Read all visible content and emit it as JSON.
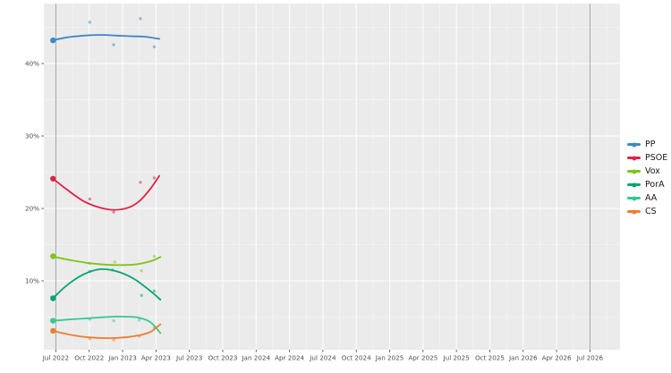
{
  "chart_data": {
    "type": "line",
    "title": "",
    "description": "Opinion poll tracker: smoothed party trend lines with individual poll dots and election-result dots, Jul 2022 - Jul 2026",
    "x_axis": {
      "tick_labels": [
        "Jul 2022",
        "Oct 2022",
        "Jan 2023",
        "Apr 2023",
        "Jul 2023",
        "Oct 2023",
        "Jan 2024",
        "Apr 2024",
        "Jul 2024",
        "Oct 2024",
        "Jan 2025",
        "Apr 2025",
        "Jul 2025",
        "Oct 2025",
        "Jan 2026",
        "Apr 2026",
        "Jul 2026"
      ],
      "tick_months": [
        0,
        3,
        6,
        9,
        12,
        15,
        18,
        21,
        24,
        27,
        30,
        33,
        36,
        39,
        42,
        45,
        48
      ]
    },
    "y_axis": {
      "tick_labels": [
        "40%",
        "30%",
        "20%",
        "10%"
      ],
      "tick_values": [
        40,
        30,
        20,
        10
      ],
      "minor_values": [
        45,
        35,
        25,
        15,
        5
      ],
      "range_pct": [
        0.5,
        48
      ]
    },
    "election_marker_months": [
      0,
      48
    ],
    "series": [
      {
        "name": "PP",
        "color": "#3d87c4",
        "election_result": 43.2,
        "trend": [
          [
            -0.25,
            43.2
          ],
          [
            1,
            43.6
          ],
          [
            2.5,
            43.85
          ],
          [
            4,
            43.95
          ],
          [
            5.5,
            43.85
          ],
          [
            7,
            43.75
          ],
          [
            8,
            43.7
          ],
          [
            9.3,
            43.4
          ]
        ],
        "polls": [
          [
            3.05,
            45.7
          ],
          [
            5.2,
            42.6
          ],
          [
            7.6,
            46.2
          ],
          [
            8.85,
            42.3
          ]
        ]
      },
      {
        "name": "PSOE",
        "color": "#e02246",
        "election_result": 24.1,
        "trend": [
          [
            -0.25,
            24.1
          ],
          [
            1,
            22.6
          ],
          [
            2.5,
            21.0
          ],
          [
            4,
            20.1
          ],
          [
            5.3,
            19.8
          ],
          [
            6.5,
            20.1
          ],
          [
            7.5,
            21.0
          ],
          [
            8.5,
            22.7
          ],
          [
            9.3,
            24.5
          ]
        ],
        "polls": [
          [
            3.05,
            21.3
          ],
          [
            5.2,
            19.5
          ],
          [
            7.6,
            23.6
          ],
          [
            8.85,
            24.2
          ]
        ]
      },
      {
        "name": "Vox",
        "color": "#7fc31d",
        "election_result": 13.4,
        "trend": [
          [
            -0.25,
            13.35
          ],
          [
            1.5,
            12.8
          ],
          [
            3,
            12.45
          ],
          [
            5,
            12.2
          ],
          [
            7,
            12.25
          ],
          [
            8.5,
            12.7
          ],
          [
            9.4,
            13.3
          ]
        ],
        "polls": [
          [
            3.05,
            12.4
          ],
          [
            5.3,
            12.6
          ],
          [
            7.7,
            11.4
          ],
          [
            8.85,
            13.4
          ]
        ]
      },
      {
        "name": "PorA",
        "color": "#00a572",
        "election_result": 7.6,
        "trend": [
          [
            -0.25,
            7.6
          ],
          [
            1,
            9.4
          ],
          [
            2.5,
            10.9
          ],
          [
            4,
            11.6
          ],
          [
            5.5,
            11.3
          ],
          [
            7,
            10.3
          ],
          [
            8.5,
            8.6
          ],
          [
            9.4,
            7.4
          ]
        ],
        "polls": [
          [
            3.05,
            11.3
          ],
          [
            5.1,
            11.5
          ],
          [
            7.7,
            8.0
          ],
          [
            8.85,
            8.6
          ]
        ]
      },
      {
        "name": "AA",
        "color": "#39c692",
        "election_result": 4.5,
        "trend": [
          [
            -0.25,
            4.5
          ],
          [
            1.5,
            4.7
          ],
          [
            3,
            4.85
          ],
          [
            5,
            5.05
          ],
          [
            6.5,
            5.05
          ],
          [
            7.5,
            4.9
          ],
          [
            8.5,
            4.3
          ],
          [
            9.4,
            2.8
          ]
        ],
        "polls": [
          [
            3.05,
            4.7
          ],
          [
            5.2,
            4.5
          ],
          [
            7.5,
            4.6
          ],
          [
            8.85,
            3.5
          ]
        ]
      },
      {
        "name": "CS",
        "color": "#ee7e30",
        "election_result": 3.1,
        "trend": [
          [
            -0.25,
            3.1
          ],
          [
            1.5,
            2.5
          ],
          [
            3,
            2.2
          ],
          [
            5,
            2.1
          ],
          [
            6.5,
            2.25
          ],
          [
            7.5,
            2.5
          ],
          [
            8.5,
            2.95
          ],
          [
            9.4,
            4.0
          ]
        ],
        "polls": [
          [
            3.05,
            2.0
          ],
          [
            5.2,
            1.85
          ],
          [
            7.5,
            2.35
          ],
          [
            9.0,
            3.6
          ]
        ]
      }
    ],
    "style": {
      "panel_background": "#ebebeb",
      "grid_major_color": "#ffffff",
      "grid_minor_color": "#ffffff",
      "election_line_color": "#9b9b9b",
      "tick_text_color": "#4d4d4d",
      "legend_position": "right"
    }
  }
}
